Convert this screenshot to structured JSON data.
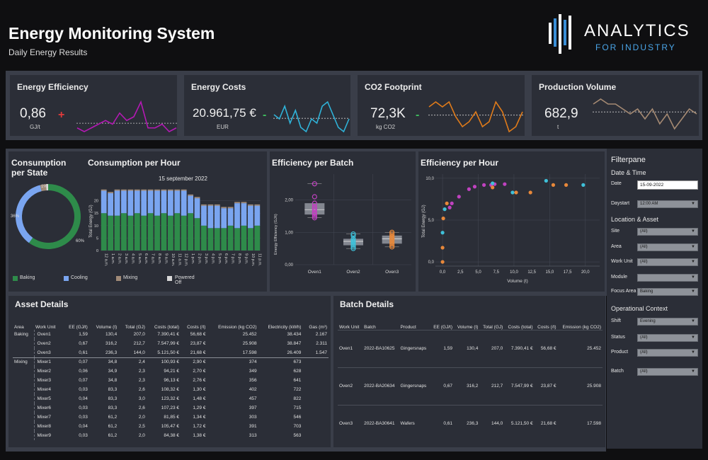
{
  "header": {
    "title": "Energy Monitoring System",
    "subtitle": "Daily Energy Results",
    "logo_text_1": "ANALYTICS",
    "logo_text_2": "FOR INDUSTRY"
  },
  "kpis": [
    {
      "title": "Energy Efficiency",
      "value": "0,86",
      "unit": "GJ/t",
      "sign": "+",
      "color": "#b419b4",
      "sign_color": "#e23b3b",
      "spark": [
        3,
        2,
        3,
        4,
        5,
        4,
        7,
        5,
        6,
        10,
        3,
        3,
        4,
        2,
        3
      ]
    },
    {
      "title": "Energy Costs",
      "value": "20.961,75 €",
      "unit": "EUR",
      "sign": "-",
      "color": "#2fb3d9",
      "sign_color": "#3fbf5f",
      "spark": [
        6,
        5,
        8,
        4,
        7,
        3,
        2,
        5,
        4,
        8,
        9,
        6,
        3,
        2,
        5
      ]
    },
    {
      "title": "CO2 Footprint",
      "value": "72,3K",
      "unit": "kg CO2",
      "sign": "-",
      "color": "#e07b1a",
      "sign_color": "#3fbf5f",
      "spark": [
        7,
        8,
        7,
        8,
        5,
        3,
        4,
        6,
        3,
        4,
        8,
        6,
        2,
        3,
        6
      ]
    },
    {
      "title": "Production Volume",
      "value": "682,9",
      "unit": "t",
      "sign": "",
      "color": "#a58a73",
      "sign_color": "#ffffff",
      "spark": [
        8,
        9,
        8,
        8,
        7,
        6,
        7,
        5,
        7,
        4,
        6,
        3,
        5,
        7,
        6
      ]
    }
  ],
  "consumption_state": {
    "title": "Consumption per State",
    "label_top": "1%",
    "label_left": "36%",
    "label_right": "60%",
    "legend": [
      {
        "name": "Baking",
        "color": "#2e8b4a"
      },
      {
        "name": "Cooling",
        "color": "#7aa5f0"
      },
      {
        "name": "Mixing",
        "color": "#a08a78"
      },
      {
        "name": "Powered Off",
        "color": "#d8d8d8"
      }
    ]
  },
  "consumption_hour": {
    "title": "Consumption per Hour",
    "date": "15 september 2022",
    "ylabel": "Total Energy (GJ)",
    "yticks": [
      "0",
      "5",
      "10",
      "15",
      "20"
    ]
  },
  "efficiency_batch": {
    "title": "Efficiency per Batch",
    "ylabel": "Energy Efficiency (GJ/t)",
    "yticks": [
      "0,00",
      "1,00",
      "2,00"
    ],
    "categories": [
      "Oven1",
      "Oven2",
      "Oven3"
    ]
  },
  "efficiency_hour": {
    "title": "Efficiency per Hour",
    "ylabel": "Total Energy (GJ)",
    "xlabel": "Volume (t)",
    "yticks": [
      "0,0",
      "5,0",
      "10,0"
    ],
    "xticks": [
      "0,0",
      "2,5",
      "5,0",
      "7,5",
      "10,0",
      "12,5",
      "15,0",
      "17,5",
      "20,0"
    ]
  },
  "chart_data": [
    {
      "type": "pie",
      "title": "Consumption per State",
      "categories": [
        "Baking",
        "Cooling",
        "Mixing",
        "Powered Off"
      ],
      "values": [
        60,
        36,
        3,
        1
      ]
    },
    {
      "type": "bar",
      "title": "Consumption per Hour",
      "ylabel": "Total Energy (GJ)",
      "ylim": [
        0,
        25
      ],
      "categories": [
        "12 a.m.",
        "1 a.m.",
        "2 a.m.",
        "3 a.m.",
        "4 a.m.",
        "5 a.m.",
        "6 a.m.",
        "7 a.m.",
        "8 a.m.",
        "9 a.m.",
        "10 a.m.",
        "11 a.m.",
        "12 p.m.",
        "1 p.m.",
        "2 p.m.",
        "3 p.m.",
        "4 p.m.",
        "5 p.m.",
        "6 p.m.",
        "7 p.m.",
        "8 p.m.",
        "9 p.m.",
        "10 p.m.",
        "11 p.m."
      ],
      "series": [
        {
          "name": "Baking",
          "color": "#2e8b4a",
          "values": [
            15,
            14,
            14,
            15,
            14,
            15,
            14,
            15,
            14,
            15,
            14,
            15,
            14,
            15,
            13,
            10,
            9,
            9,
            9,
            10,
            9,
            10,
            9,
            10
          ]
        },
        {
          "name": "Cooling",
          "color": "#7aa5f0",
          "values": [
            9,
            9,
            10,
            9,
            10,
            9,
            10,
            9,
            10,
            9,
            10,
            9,
            10,
            7,
            8,
            8,
            9,
            9,
            8,
            7,
            10,
            9,
            9,
            8
          ]
        },
        {
          "name": "Mixing",
          "color": "#a08a78",
          "values": [
            0.5,
            0.5,
            0.5,
            0.5,
            0.5,
            0.5,
            0.5,
            0.5,
            0.5,
            0.5,
            0.5,
            0.5,
            0.5,
            0.5,
            0.5,
            0.5,
            0.5,
            0.5,
            0.5,
            0.5,
            0.5,
            0.5,
            0.5,
            0.5
          ]
        }
      ]
    },
    {
      "type": "scatter",
      "title": "Efficiency per Batch",
      "ylabel": "Energy Efficiency (GJ/t)",
      "ylim": [
        0,
        2.8
      ],
      "categories": [
        "Oven1",
        "Oven2",
        "Oven3"
      ],
      "series": [
        {
          "name": "Oven1",
          "color": "#c042c0",
          "values": [
            1.45,
            1.5,
            1.55,
            1.6,
            1.62,
            1.7,
            1.75,
            1.8,
            1.9,
            2.1,
            2.5
          ]
        },
        {
          "name": "Oven2",
          "color": "#3fc0d8",
          "values": [
            0.5,
            0.55,
            0.6,
            0.65,
            0.7,
            0.72,
            0.75,
            0.8,
            0.9,
            0.95
          ]
        },
        {
          "name": "Oven3",
          "color": "#e8883a",
          "values": [
            0.55,
            0.6,
            0.65,
            0.7,
            0.75,
            0.8,
            0.85,
            0.9,
            0.95,
            1.0
          ]
        }
      ]
    },
    {
      "type": "scatter",
      "title": "Efficiency per Hour",
      "xlabel": "Volume (t)",
      "ylabel": "Total Energy (GJ)",
      "xlim": [
        -1,
        22
      ],
      "ylim": [
        -0.5,
        10.5
      ],
      "series": [
        {
          "name": "Oven1",
          "color": "#c042c0",
          "points": [
            [
              1,
              6.5
            ],
            [
              1.3,
              7
            ],
            [
              2.3,
              7.8
            ],
            [
              3.7,
              8.7
            ],
            [
              4.5,
              9
            ],
            [
              5.8,
              9.2
            ],
            [
              6.8,
              9.2
            ],
            [
              7.3,
              9.3
            ],
            [
              8.7,
              9.3
            ]
          ]
        },
        {
          "name": "Oven2",
          "color": "#3fc0d8",
          "points": [
            [
              0,
              3.5
            ],
            [
              0.3,
              6.3
            ],
            [
              7,
              9.4
            ],
            [
              9.8,
              8.3
            ],
            [
              14.5,
              9.7
            ],
            [
              19.7,
              9.2
            ]
          ]
        },
        {
          "name": "Oven3",
          "color": "#e8883a",
          "points": [
            [
              0,
              0
            ],
            [
              0,
              1.7
            ],
            [
              0.1,
              5.2
            ],
            [
              0.6,
              7
            ],
            [
              7,
              8.9
            ],
            [
              10.3,
              8.3
            ],
            [
              12.3,
              8.3
            ],
            [
              15.5,
              9.2
            ],
            [
              17.3,
              9.2
            ]
          ]
        }
      ]
    }
  ],
  "asset_details": {
    "title": "Asset Details",
    "headers": [
      "Area",
      "Work Unit",
      "EE (GJ/t)",
      "Volume (t)",
      "Total (GJ)",
      "Costs (total)",
      "Costs (/t)",
      "Emission (kg CO2)",
      "Electricity (kWh)",
      "Gas (m³)"
    ],
    "rows": [
      [
        "Baking",
        "Oven1",
        "1,59",
        "130,4",
        "207,0",
        "7.390,41 €",
        "56,68 €",
        "25.452",
        "38.434",
        "2.167"
      ],
      [
        "",
        "Oven2",
        "0,67",
        "316,2",
        "212,7",
        "7.547,99 €",
        "23,87 €",
        "25.908",
        "38.847",
        "2.311"
      ],
      [
        "",
        "Oven3",
        "0,61",
        "236,3",
        "144,0",
        "5.121,50 €",
        "21,68 €",
        "17.598",
        "26.409",
        "1.547"
      ],
      [
        "Mixing",
        "Mixer1",
        "0,07",
        "34,8",
        "2,4",
        "100,93 €",
        "2,90 €",
        "374",
        "673",
        ""
      ],
      [
        "",
        "Mixer2",
        "0,06",
        "34,9",
        "2,3",
        "94,21 €",
        "2,70 €",
        "349",
        "628",
        ""
      ],
      [
        "",
        "Mixer3",
        "0,07",
        "34,8",
        "2,3",
        "96,13 €",
        "2,76 €",
        "356",
        "641",
        ""
      ],
      [
        "",
        "Mixer4",
        "0,03",
        "83,3",
        "2,6",
        "108,32 €",
        "1,30 €",
        "402",
        "722",
        ""
      ],
      [
        "",
        "Mixer5",
        "0,04",
        "83,3",
        "3,0",
        "123,32 €",
        "1,48 €",
        "457",
        "822",
        ""
      ],
      [
        "",
        "Mixer6",
        "0,03",
        "83,3",
        "2,6",
        "107,23 €",
        "1,29 €",
        "397",
        "715",
        ""
      ],
      [
        "",
        "Mixer7",
        "0,03",
        "61,2",
        "2,0",
        "81,85 €",
        "1,34 €",
        "303",
        "546",
        ""
      ],
      [
        "",
        "Mixer8",
        "0,04",
        "61,2",
        "2,5",
        "105,47 €",
        "1,72 €",
        "391",
        "703",
        ""
      ],
      [
        "",
        "Mixer9",
        "0,03",
        "61,2",
        "2,0",
        "84,38 €",
        "1,38 €",
        "313",
        "563",
        ""
      ]
    ]
  },
  "batch_details": {
    "title": "Batch Details",
    "headers": [
      "Work Unit",
      "Batch",
      "Product",
      "EE (GJ/t)",
      "Volume (t)",
      "Total (GJ)",
      "Costs (total)",
      "Costs (/t)",
      "Emission (kg CO2)"
    ],
    "rows": [
      [
        "Oven1",
        "2022-BA10625",
        "Gingersnaps",
        "1,59",
        "130,4",
        "207,0",
        "7.390,41 €",
        "56,68 €",
        "25.452"
      ],
      [
        "Oven2",
        "2022-BA20634",
        "Gingersnaps",
        "0,67",
        "316,2",
        "212,7",
        "7.547,99 €",
        "23,87 €",
        "25.908"
      ],
      [
        "Oven3",
        "2022-BA30641",
        "Wafers",
        "0,61",
        "236,3",
        "144,0",
        "5.121,50 €",
        "21,68 €",
        "17.598"
      ]
    ]
  },
  "filterpane": {
    "title": "Filterpane",
    "section_date": "Date & Time",
    "date_label": "Date",
    "date_value": "15-09-2022",
    "daystart_label": "Daystart",
    "daystart_value": "12:00 AM",
    "section_location": "Location & Asset",
    "site_label": "Site",
    "site_value": "(All)",
    "area_label": "Area",
    "area_value": "(All)",
    "workunit_label": "Work Unit",
    "workunit_value": "(All)",
    "module_label": "Module",
    "module_value": "",
    "focusarea_label": "Focus Area",
    "focusarea_value": "Baking",
    "section_context": "Operational Context",
    "shift_label": "Shift",
    "shift_value": "Evening",
    "status_label": "Status",
    "status_value": "(All)",
    "product_label": "Product",
    "product_value": "(All)",
    "batch_label": "Batch",
    "batch_value": "(All)"
  }
}
